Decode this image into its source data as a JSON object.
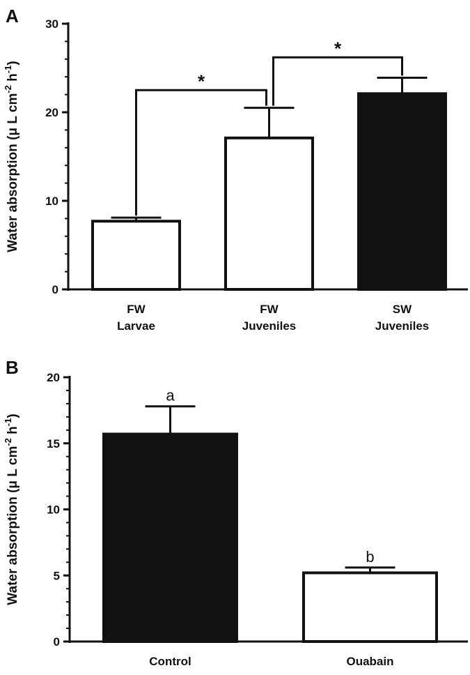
{
  "chart_data": [
    {
      "panel": "A",
      "type": "bar",
      "categories": [
        [
          "FW",
          "Larvae"
        ],
        [
          "FW",
          "Juveniles"
        ],
        [
          "SW",
          "Juveniles"
        ]
      ],
      "values": [
        7.7,
        17.1,
        22.1
      ],
      "errors": [
        0.4,
        3.4,
        1.8
      ],
      "fills": [
        "#ffffff",
        "#ffffff",
        "#111111"
      ],
      "ylabel": "Water absorption (μ L cm⁻² h⁻¹)",
      "ylim": [
        0,
        30
      ],
      "yticks": [
        0,
        10,
        20,
        30
      ],
      "significance": [
        {
          "from": 0,
          "to": 1,
          "label": "*"
        },
        {
          "from": 1,
          "to": 2,
          "label": "*"
        }
      ]
    },
    {
      "panel": "B",
      "type": "bar",
      "categories": [
        [
          "Control"
        ],
        [
          "Ouabain"
        ]
      ],
      "values": [
        15.7,
        5.2
      ],
      "errors": [
        2.1,
        0.4
      ],
      "fills": [
        "#111111",
        "#ffffff"
      ],
      "bar_labels": [
        "a",
        "b"
      ],
      "ylabel": "Water absorption (μ L cm⁻² h⁻¹)",
      "ylim": [
        0,
        20
      ],
      "yticks": [
        0,
        5,
        10,
        15,
        20
      ]
    }
  ]
}
